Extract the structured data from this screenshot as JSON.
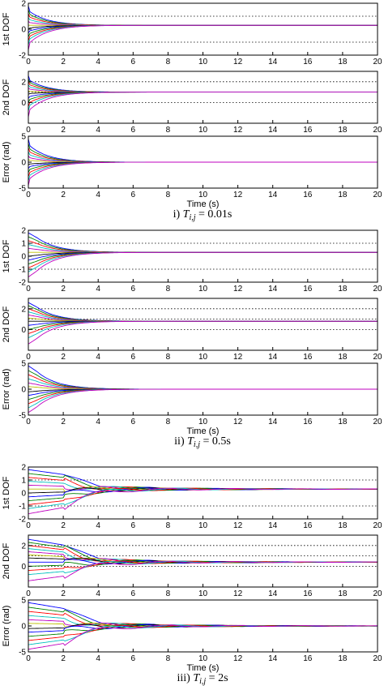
{
  "chart_data": [
    {
      "type": "line",
      "caption": "i) T_{i,j} = 0.01s",
      "caption_parts": {
        "roman": "i)",
        "var": "T",
        "sub": "i,j",
        "eq": " = 0.01s"
      },
      "t_switch": 0.01,
      "subplots": [
        {
          "ylabel": "1st DOF",
          "ylim": [
            -2,
            2
          ],
          "yticks": [
            "-2",
            "0",
            "2"
          ],
          "ytick_values": [
            -2,
            0,
            2
          ],
          "ref_lines": [
            1,
            -1
          ],
          "final": 0.3,
          "starts": [
            1.8,
            1.5,
            1.2,
            0.9,
            0.6,
            0.3,
            0.0,
            -0.3,
            -0.6,
            -0.9,
            -1.2,
            -1.6
          ]
        },
        {
          "ylabel": "2nd DOF",
          "ylim": [
            -2,
            3
          ],
          "yticks": [
            "0",
            "2"
          ],
          "ytick_values": [
            0,
            2
          ],
          "ref_lines": [
            2,
            1,
            0
          ],
          "final": 1.0,
          "starts": [
            2.6,
            2.3,
            2.0,
            1.7,
            1.4,
            1.1,
            0.8,
            0.4,
            0.0,
            -0.4,
            -0.8,
            -1.4
          ]
        },
        {
          "ylabel": "Error (rad)",
          "ylim": [
            -5,
            5
          ],
          "yticks": [
            "-5",
            "0",
            "5"
          ],
          "ytick_values": [
            -5,
            0,
            5
          ],
          "ref_lines": [],
          "final": 0.0,
          "starts": [
            4.5,
            3.6,
            2.8,
            2.0,
            1.2,
            0.5,
            -0.5,
            -1.2,
            -2.0,
            -2.8,
            -3.6,
            -4.5
          ],
          "xlabel": "Time (s)"
        }
      ],
      "xlim": [
        0,
        20
      ],
      "xticks": [
        "0",
        "2",
        "4",
        "6",
        "8",
        "10",
        "12",
        "14",
        "16",
        "18",
        "20"
      ],
      "xtick_values": [
        0,
        2,
        4,
        6,
        8,
        10,
        12,
        14,
        16,
        18,
        20
      ]
    },
    {
      "type": "line",
      "caption": "ii) T_{i,j} = 0.5s",
      "caption_parts": {
        "roman": "ii)",
        "var": "T",
        "sub": "i,j",
        "eq": " = 0.5s"
      },
      "t_switch": 0.5,
      "subplots": [
        {
          "ylabel": "1st DOF",
          "ylim": [
            -2,
            2
          ],
          "yticks": [
            "-2",
            "-1",
            "0",
            "1",
            "2"
          ],
          "ytick_values": [
            -2,
            -1,
            0,
            1,
            2
          ],
          "ref_lines": [
            1,
            -1
          ],
          "final": 0.3,
          "starts": [
            1.8,
            1.5,
            1.2,
            0.9,
            0.6,
            0.3,
            0.0,
            -0.3,
            -0.6,
            -0.9,
            -1.2,
            -1.6
          ]
        },
        {
          "ylabel": "2nd DOF",
          "ylim": [
            -2,
            3
          ],
          "yticks": [
            "0",
            "2"
          ],
          "ytick_values": [
            0,
            2
          ],
          "ref_lines": [
            2,
            1,
            0
          ],
          "final": 0.8,
          "starts": [
            2.6,
            2.3,
            2.0,
            1.7,
            1.4,
            1.1,
            0.8,
            0.4,
            0.0,
            -0.4,
            -0.8,
            -1.4
          ]
        },
        {
          "ylabel": "Error (rad)",
          "ylim": [
            -5,
            5
          ],
          "yticks": [
            "-5",
            "0",
            "5"
          ],
          "ytick_values": [
            -5,
            0,
            5
          ],
          "ref_lines": [],
          "final": 0.0,
          "starts": [
            4.5,
            3.6,
            2.8,
            2.0,
            1.2,
            0.5,
            -0.5,
            -1.2,
            -2.0,
            -2.8,
            -3.6,
            -4.5
          ],
          "xlabel": "Time (s)"
        }
      ],
      "xlim": [
        0,
        20
      ],
      "xticks": [
        "0",
        "2",
        "4",
        "6",
        "8",
        "10",
        "12",
        "14",
        "16",
        "18",
        "20"
      ],
      "xtick_values": [
        0,
        2,
        4,
        6,
        8,
        10,
        12,
        14,
        16,
        18,
        20
      ]
    },
    {
      "type": "line",
      "caption": "iii) T_{i,j} = 2s",
      "caption_parts": {
        "roman": "iii)",
        "var": "T",
        "sub": "i,j",
        "eq": " = 2s"
      },
      "t_switch": 2,
      "subplots": [
        {
          "ylabel": "1st DOF",
          "ylim": [
            -2,
            2
          ],
          "yticks": [
            "-2",
            "-1",
            "0",
            "1",
            "2"
          ],
          "ytick_values": [
            -2,
            -1,
            0,
            1,
            2
          ],
          "ref_lines": [
            1,
            -1
          ],
          "final": 0.3,
          "starts": [
            1.8,
            1.5,
            1.2,
            0.9,
            0.6,
            0.3,
            0.0,
            -0.3,
            -0.6,
            -0.9,
            -1.2,
            -1.6
          ]
        },
        {
          "ylabel": "2nd DOF",
          "ylim": [
            -2,
            3
          ],
          "yticks": [
            "0",
            "2"
          ],
          "ytick_values": [
            0,
            2
          ],
          "ref_lines": [
            2,
            1,
            0
          ],
          "final": 0.4,
          "starts": [
            2.6,
            2.3,
            2.0,
            1.7,
            1.4,
            1.1,
            0.8,
            0.4,
            0.0,
            -0.4,
            -0.8,
            -1.4
          ]
        },
        {
          "ylabel": "Error (rad)",
          "ylim": [
            -5,
            5
          ],
          "yticks": [
            "-5",
            "0",
            "5"
          ],
          "ytick_values": [
            -5,
            0,
            5
          ],
          "ref_lines": [],
          "final": 0.0,
          "starts": [
            4.5,
            3.6,
            2.8,
            2.0,
            1.2,
            0.5,
            -0.5,
            -1.2,
            -2.0,
            -2.8,
            -3.6,
            -4.5
          ],
          "xlabel": "Time (s)"
        }
      ],
      "xlim": [
        0,
        20
      ],
      "xticks": [
        "0",
        "2",
        "4",
        "6",
        "8",
        "10",
        "12",
        "14",
        "16",
        "18",
        "20"
      ],
      "xtick_values": [
        0,
        2,
        4,
        6,
        8,
        10,
        12,
        14,
        16,
        18,
        20
      ]
    }
  ],
  "series_colors": [
    "#0000ff",
    "#008000",
    "#ff0000",
    "#00bfbf",
    "#bf00bf",
    "#bfbf00",
    "#000000",
    "#0000ff",
    "#008000",
    "#ff0000",
    "#00bfbf",
    "#bf00bf"
  ],
  "grid": false,
  "legend": "none"
}
